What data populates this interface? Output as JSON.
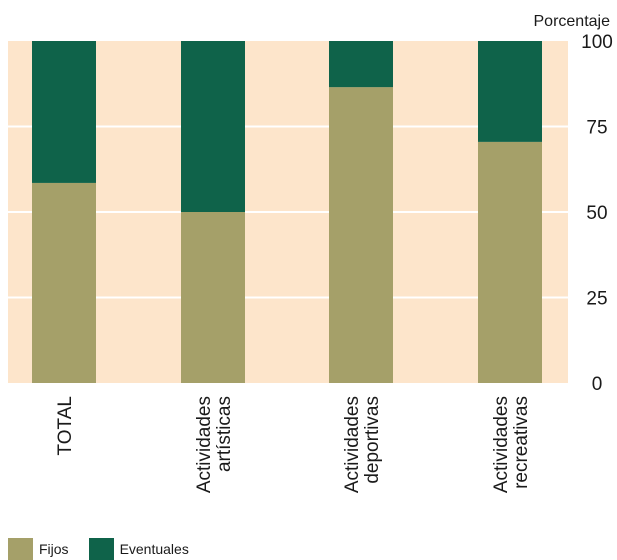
{
  "colors": {
    "plot_background": "#fde5cb",
    "gridline": "#ffffff",
    "fijos": "#a5a069",
    "eventuales": "#0f634a"
  },
  "chart_data": {
    "type": "bar",
    "stacked": true,
    "orientation": "vertical",
    "ylabel": "Porcentaje",
    "ylim": [
      0,
      100
    ],
    "yticks": [
      "0",
      "25",
      "50",
      "75",
      "100"
    ],
    "y_axis_position": "right",
    "grid": true,
    "legend_position": "bottom-left",
    "categories": [
      [
        "TOTAL"
      ],
      [
        "Actividades",
        "artísticas"
      ],
      [
        "Actividades",
        "deportivas"
      ],
      [
        "Actividades",
        "recreativas"
      ]
    ],
    "series": [
      {
        "name": "Fijos",
        "color": "#a5a069",
        "values": [
          58.5,
          50,
          86.5,
          70.5
        ]
      },
      {
        "name": "Eventuales",
        "color": "#0f634a",
        "values": [
          41.5,
          50,
          13.5,
          29.5
        ]
      }
    ]
  }
}
